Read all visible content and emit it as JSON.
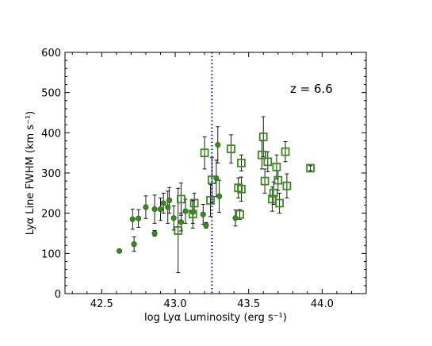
{
  "chart_data": {
    "type": "scatter",
    "xlabel": "log Lyα Luminosity (erg s⁻¹)",
    "ylabel": "Lyα Line FWHM (km s⁻¹)",
    "annotation": "z = 6.6",
    "xlim": [
      42.25,
      44.3
    ],
    "ylim": [
      0,
      600
    ],
    "xticks": [
      42.5,
      43.0,
      43.5,
      44.0
    ],
    "xtick_labels": [
      "42.5",
      "43.0",
      "43.5",
      "44.0"
    ],
    "yticks": [
      0,
      100,
      200,
      300,
      400,
      500,
      600
    ],
    "ytick_labels": [
      "0",
      "100",
      "200",
      "300",
      "400",
      "500",
      "600"
    ],
    "grid": false,
    "vline": {
      "x": 43.25,
      "style": "dotted",
      "color": "#0000dd"
    },
    "series": [
      {
        "marker": "circle",
        "color": "#3a8a1e",
        "points": [
          {
            "x": 42.62,
            "y": 106,
            "err": 4
          },
          {
            "x": 42.71,
            "y": 185,
            "err": 25
          },
          {
            "x": 42.72,
            "y": 123,
            "err": 18
          },
          {
            "x": 42.75,
            "y": 187,
            "err": 22
          },
          {
            "x": 42.8,
            "y": 215,
            "err": 28
          },
          {
            "x": 42.86,
            "y": 150,
            "err": 7
          },
          {
            "x": 42.86,
            "y": 210,
            "err": 35
          },
          {
            "x": 42.9,
            "y": 210,
            "err": 28
          },
          {
            "x": 42.92,
            "y": 225,
            "err": 25
          },
          {
            "x": 42.95,
            "y": 215,
            "err": 40
          },
          {
            "x": 42.96,
            "y": 232,
            "err": 32
          },
          {
            "x": 42.99,
            "y": 188,
            "err": 30
          },
          {
            "x": 43.04,
            "y": 178,
            "err": 22
          },
          {
            "x": 43.07,
            "y": 205,
            "err": 30
          },
          {
            "x": 43.12,
            "y": 203,
            "err": 28
          },
          {
            "x": 43.19,
            "y": 197,
            "err": 25
          },
          {
            "x": 43.21,
            "y": 170,
            "err": 7
          },
          {
            "x": 43.28,
            "y": 287,
            "err": 45
          },
          {
            "x": 43.29,
            "y": 370,
            "err": 45
          },
          {
            "x": 43.3,
            "y": 242,
            "err": 40
          },
          {
            "x": 43.41,
            "y": 188,
            "err": 20
          }
        ]
      },
      {
        "marker": "square",
        "color": "#3a8a1e",
        "points": [
          {
            "x": 43.02,
            "y": 157,
            "err": 105
          },
          {
            "x": 43.04,
            "y": 235,
            "err": 40
          },
          {
            "x": 43.12,
            "y": 198,
            "err": 35
          },
          {
            "x": 43.13,
            "y": 225,
            "err": 25
          },
          {
            "x": 43.2,
            "y": 350,
            "err": 40
          },
          {
            "x": 43.24,
            "y": 232,
            "err": 40
          },
          {
            "x": 43.25,
            "y": 283,
            "err": 55
          },
          {
            "x": 43.38,
            "y": 360,
            "err": 35
          },
          {
            "x": 43.43,
            "y": 263,
            "err": 25
          },
          {
            "x": 43.44,
            "y": 197,
            "err": 12
          },
          {
            "x": 43.45,
            "y": 260,
            "err": 30
          },
          {
            "x": 43.45,
            "y": 325,
            "err": 20
          },
          {
            "x": 43.59,
            "y": 345,
            "err": 35
          },
          {
            "x": 43.6,
            "y": 390,
            "err": 50
          },
          {
            "x": 43.61,
            "y": 280,
            "err": 30
          },
          {
            "x": 43.63,
            "y": 328,
            "err": 25
          },
          {
            "x": 43.66,
            "y": 235,
            "err": 30
          },
          {
            "x": 43.67,
            "y": 250,
            "err": 28
          },
          {
            "x": 43.69,
            "y": 315,
            "err": 30
          },
          {
            "x": 43.7,
            "y": 282,
            "err": 25
          },
          {
            "x": 43.71,
            "y": 225,
            "err": 25
          },
          {
            "x": 43.75,
            "y": 353,
            "err": 25
          },
          {
            "x": 43.76,
            "y": 268,
            "err": 30
          },
          {
            "x": 43.92,
            "y": 312,
            "err": 6
          }
        ]
      }
    ]
  }
}
